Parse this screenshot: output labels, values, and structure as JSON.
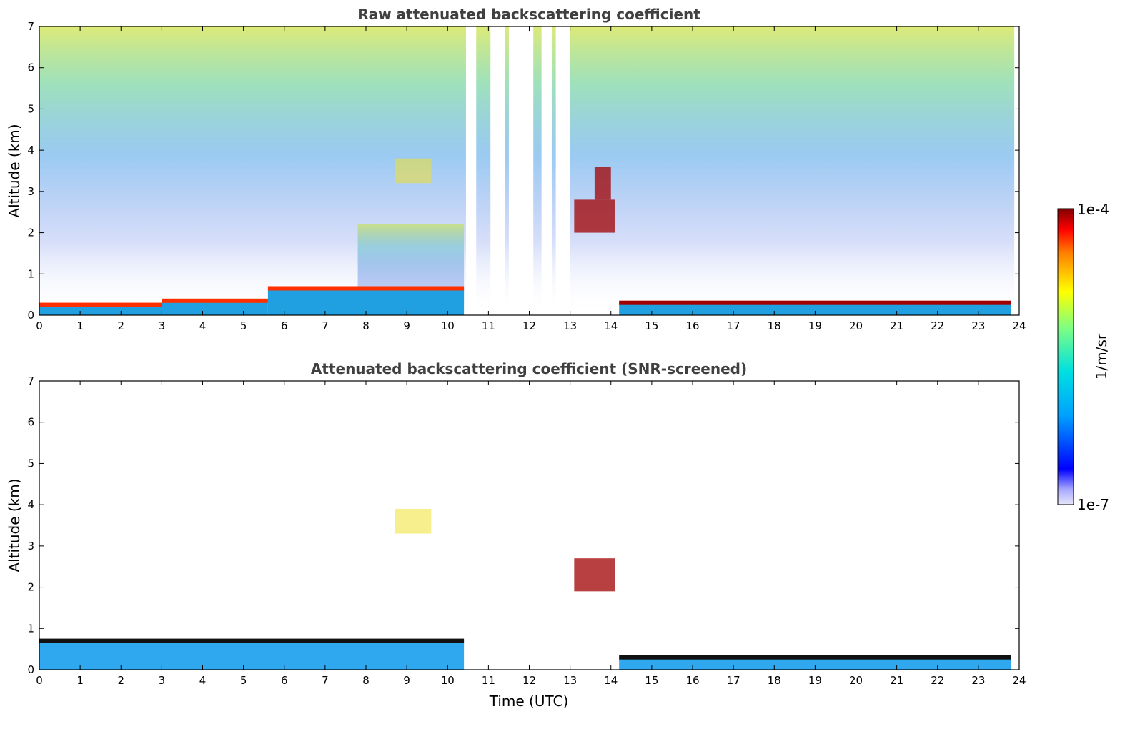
{
  "chart_data": [
    {
      "type": "heatmap",
      "title": "Raw attenuated backscattering coefficient",
      "xlabel": "",
      "ylabel": "Altitude (km)",
      "xlim": [
        0,
        24
      ],
      "ylim": [
        0,
        7
      ],
      "x_ticks": [
        "0",
        "1",
        "2",
        "3",
        "4",
        "5",
        "6",
        "7",
        "8",
        "9",
        "10",
        "11",
        "12",
        "13",
        "14",
        "15",
        "16",
        "17",
        "18",
        "19",
        "20",
        "21",
        "22",
        "23",
        "24"
      ],
      "y_ticks": [
        "0",
        "1",
        "2",
        "3",
        "4",
        "5",
        "6",
        "7"
      ],
      "data_gaps_utc": [
        [
          10.45,
          10.7
        ],
        [
          11.05,
          11.4
        ],
        [
          11.5,
          12.1
        ],
        [
          12.3,
          12.55
        ],
        [
          12.65,
          13.0
        ]
      ],
      "features": [
        {
          "kind": "boundary_layer",
          "t_start": 0.0,
          "t_end": 3.0,
          "top_km": 0.25,
          "level": "high"
        },
        {
          "kind": "boundary_layer",
          "t_start": 3.0,
          "t_end": 5.6,
          "top_km": 0.35,
          "level": "high"
        },
        {
          "kind": "boundary_layer",
          "t_start": 5.6,
          "t_end": 10.4,
          "top_km": 0.65,
          "level": "high"
        },
        {
          "kind": "boundary_layer",
          "t_start": 14.2,
          "t_end": 23.8,
          "top_km": 0.3,
          "level": "very_high"
        },
        {
          "kind": "aerosol_layer",
          "t_start": 8.7,
          "t_end": 9.6,
          "alt_km": 3.5,
          "level": "medium"
        },
        {
          "kind": "cloud",
          "t_start": 13.1,
          "t_end": 14.1,
          "alt_km": 2.4,
          "level": "very_high"
        },
        {
          "kind": "cloud",
          "t_start": 13.6,
          "t_end": 14.0,
          "alt_km": 3.2,
          "level": "very_high"
        }
      ]
    },
    {
      "type": "heatmap",
      "title": "Attenuated backscattering coefficient (SNR-screened)",
      "xlabel": "Time (UTC)",
      "ylabel": "Altitude (km)",
      "xlim": [
        0,
        24
      ],
      "ylim": [
        0,
        7
      ],
      "x_ticks": [
        "0",
        "1",
        "2",
        "3",
        "4",
        "5",
        "6",
        "7",
        "8",
        "9",
        "10",
        "11",
        "12",
        "13",
        "14",
        "15",
        "16",
        "17",
        "18",
        "19",
        "20",
        "21",
        "22",
        "23",
        "24"
      ],
      "y_ticks": [
        "0",
        "1",
        "2",
        "3",
        "4",
        "5",
        "6",
        "7"
      ],
      "features": [
        {
          "kind": "boundary_layer",
          "t_start": 0.0,
          "t_end": 10.4,
          "top_km": 0.7,
          "level": "medium"
        },
        {
          "kind": "boundary_layer",
          "t_start": 14.2,
          "t_end": 23.8,
          "top_km": 0.3,
          "level": "high"
        },
        {
          "kind": "aerosol_layer",
          "t_start": 8.7,
          "t_end": 9.6,
          "alt_km": 3.6,
          "level": "medium"
        },
        {
          "kind": "cloud",
          "t_start": 13.1,
          "t_end": 14.1,
          "alt_km": 2.3,
          "level": "very_high"
        }
      ]
    }
  ],
  "colorbar": {
    "label": "1/m/sr",
    "max_label": "1e-4",
    "min_label": "1e-7",
    "scale": "log",
    "colors": [
      "#e6e6fa",
      "#aaaaff",
      "#0000ff",
      "#00a0ff",
      "#00e0e0",
      "#80ff80",
      "#ffff00",
      "#ff8000",
      "#ff0000",
      "#800000"
    ]
  }
}
